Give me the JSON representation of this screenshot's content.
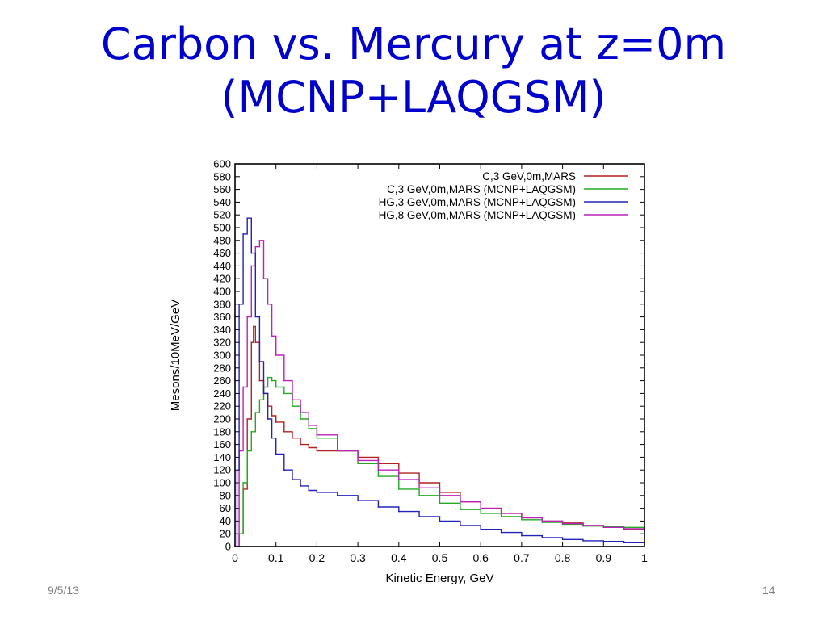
{
  "slide": {
    "title_line1": "Carbon vs. Mercury at z=0m",
    "title_line2": "(MCNP+LAQGSM)",
    "date": "9/5/13",
    "page_number": "14"
  },
  "chart_data": {
    "type": "line",
    "title": "",
    "xlabel": "Kinetic Energy, GeV",
    "ylabel": "Mesons/10MeV/GeV",
    "xlim": [
      0,
      1
    ],
    "ylim": [
      0,
      600
    ],
    "x_ticks": [
      0,
      0.1,
      0.2,
      0.3,
      0.4,
      0.5,
      0.6,
      0.7,
      0.8,
      0.9,
      1
    ],
    "x_tick_labels": [
      "0",
      "0.1",
      "0.2",
      "0.3",
      "0.4",
      "0.5",
      "0.6",
      "0.7",
      "0.8",
      "0.9",
      "1"
    ],
    "y_ticks": [
      0,
      20,
      40,
      60,
      80,
      100,
      120,
      140,
      160,
      180,
      200,
      220,
      240,
      260,
      280,
      300,
      320,
      340,
      360,
      380,
      400,
      420,
      440,
      460,
      480,
      500,
      520,
      540,
      560,
      580,
      600
    ],
    "legend_position": "top-right",
    "grid": false,
    "step_plot": true,
    "series": [
      {
        "name": "C,3 GeV,0m,MARS",
        "color": "#b22222",
        "points": [
          [
            0,
            0
          ],
          [
            0.01,
            20
          ],
          [
            0.02,
            90
          ],
          [
            0.03,
            200
          ],
          [
            0.04,
            320
          ],
          [
            0.045,
            345
          ],
          [
            0.05,
            320
          ],
          [
            0.06,
            260
          ],
          [
            0.07,
            240
          ],
          [
            0.08,
            220
          ],
          [
            0.09,
            205
          ],
          [
            0.1,
            195
          ],
          [
            0.12,
            180
          ],
          [
            0.14,
            170
          ],
          [
            0.16,
            160
          ],
          [
            0.18,
            155
          ],
          [
            0.2,
            150
          ],
          [
            0.25,
            150
          ],
          [
            0.3,
            140
          ],
          [
            0.35,
            130
          ],
          [
            0.4,
            115
          ],
          [
            0.45,
            100
          ],
          [
            0.5,
            85
          ],
          [
            0.55,
            70
          ],
          [
            0.6,
            60
          ],
          [
            0.65,
            52
          ],
          [
            0.7,
            45
          ],
          [
            0.75,
            40
          ],
          [
            0.8,
            37
          ],
          [
            0.85,
            33
          ],
          [
            0.9,
            30
          ],
          [
            0.95,
            27
          ],
          [
            1,
            23
          ]
        ]
      },
      {
        "name": "C,3 GeV,0m,MARS (MCNP+LAQGSM)",
        "color": "#22aa22",
        "points": [
          [
            0,
            0
          ],
          [
            0.01,
            20
          ],
          [
            0.02,
            100
          ],
          [
            0.03,
            150
          ],
          [
            0.04,
            180
          ],
          [
            0.05,
            210
          ],
          [
            0.06,
            230
          ],
          [
            0.07,
            250
          ],
          [
            0.08,
            265
          ],
          [
            0.09,
            260
          ],
          [
            0.1,
            250
          ],
          [
            0.12,
            240
          ],
          [
            0.14,
            220
          ],
          [
            0.16,
            200
          ],
          [
            0.18,
            185
          ],
          [
            0.2,
            170
          ],
          [
            0.25,
            150
          ],
          [
            0.3,
            130
          ],
          [
            0.35,
            110
          ],
          [
            0.4,
            90
          ],
          [
            0.45,
            80
          ],
          [
            0.5,
            68
          ],
          [
            0.55,
            58
          ],
          [
            0.6,
            52
          ],
          [
            0.65,
            47
          ],
          [
            0.7,
            42
          ],
          [
            0.75,
            38
          ],
          [
            0.8,
            35
          ],
          [
            0.85,
            32
          ],
          [
            0.9,
            31
          ],
          [
            0.95,
            30
          ],
          [
            1,
            29
          ]
        ]
      },
      {
        "name": "HG,3 GeV,0m,MARS (MCNP+LAQGSM)",
        "color": "#2222bb",
        "points": [
          [
            0,
            0
          ],
          [
            0.005,
            120
          ],
          [
            0.01,
            380
          ],
          [
            0.02,
            490
          ],
          [
            0.03,
            515
          ],
          [
            0.04,
            460
          ],
          [
            0.05,
            360
          ],
          [
            0.06,
            290
          ],
          [
            0.07,
            240
          ],
          [
            0.08,
            200
          ],
          [
            0.09,
            170
          ],
          [
            0.1,
            145
          ],
          [
            0.12,
            120
          ],
          [
            0.14,
            105
          ],
          [
            0.16,
            95
          ],
          [
            0.18,
            88
          ],
          [
            0.2,
            85
          ],
          [
            0.25,
            80
          ],
          [
            0.3,
            72
          ],
          [
            0.35,
            62
          ],
          [
            0.4,
            55
          ],
          [
            0.45,
            47
          ],
          [
            0.5,
            40
          ],
          [
            0.55,
            33
          ],
          [
            0.6,
            27
          ],
          [
            0.65,
            22
          ],
          [
            0.7,
            17
          ],
          [
            0.75,
            14
          ],
          [
            0.8,
            11
          ],
          [
            0.85,
            9
          ],
          [
            0.9,
            8
          ],
          [
            0.95,
            6
          ],
          [
            1,
            5
          ]
        ]
      },
      {
        "name": "HG,8 GeV,0m,MARS (MCNP+LAQGSM)",
        "color": "#bb22bb",
        "points": [
          [
            0,
            0
          ],
          [
            0.01,
            150
          ],
          [
            0.02,
            250
          ],
          [
            0.03,
            360
          ],
          [
            0.04,
            440
          ],
          [
            0.05,
            470
          ],
          [
            0.06,
            480
          ],
          [
            0.07,
            420
          ],
          [
            0.08,
            380
          ],
          [
            0.09,
            330
          ],
          [
            0.1,
            300
          ],
          [
            0.12,
            260
          ],
          [
            0.14,
            230
          ],
          [
            0.16,
            210
          ],
          [
            0.18,
            190
          ],
          [
            0.2,
            175
          ],
          [
            0.25,
            150
          ],
          [
            0.3,
            135
          ],
          [
            0.35,
            120
          ],
          [
            0.4,
            105
          ],
          [
            0.45,
            92
          ],
          [
            0.5,
            80
          ],
          [
            0.55,
            70
          ],
          [
            0.6,
            60
          ],
          [
            0.65,
            52
          ],
          [
            0.7,
            45
          ],
          [
            0.75,
            40
          ],
          [
            0.8,
            36
          ],
          [
            0.85,
            33
          ],
          [
            0.9,
            30
          ],
          [
            0.95,
            28
          ],
          [
            1,
            25
          ]
        ]
      }
    ]
  }
}
